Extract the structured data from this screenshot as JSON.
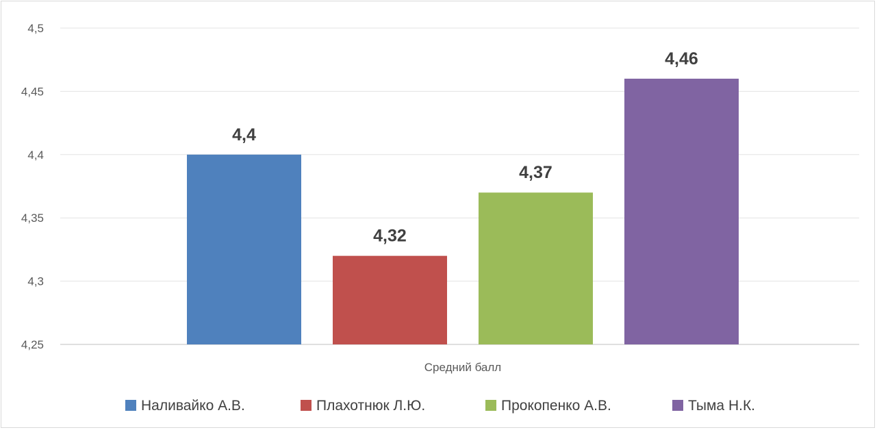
{
  "chart_data": {
    "type": "bar",
    "category": "Средний балл",
    "ylim": [
      4.25,
      4.5
    ],
    "ytick_values": [
      4.25,
      4.3,
      4.35,
      4.4,
      4.45,
      4.5
    ],
    "ytick_labels": [
      "4,25",
      "4,3",
      "4,35",
      "4,4",
      "4,45",
      "4,5"
    ],
    "grid": true,
    "legend_position": "bottom",
    "series": [
      {
        "name": "Наливайко А.В.",
        "value": 4.4,
        "label": "4,4",
        "color": "#4f81bd"
      },
      {
        "name": "Плахотнюк Л.Ю.",
        "value": 4.32,
        "label": "4,32",
        "color": "#c0504d"
      },
      {
        "name": "Прокопенко А.В.",
        "value": 4.37,
        "label": "4,37",
        "color": "#9bbb59"
      },
      {
        "name": "Тыма Н.К.",
        "value": 4.46,
        "label": "4,46",
        "color": "#8064a2"
      }
    ]
  }
}
